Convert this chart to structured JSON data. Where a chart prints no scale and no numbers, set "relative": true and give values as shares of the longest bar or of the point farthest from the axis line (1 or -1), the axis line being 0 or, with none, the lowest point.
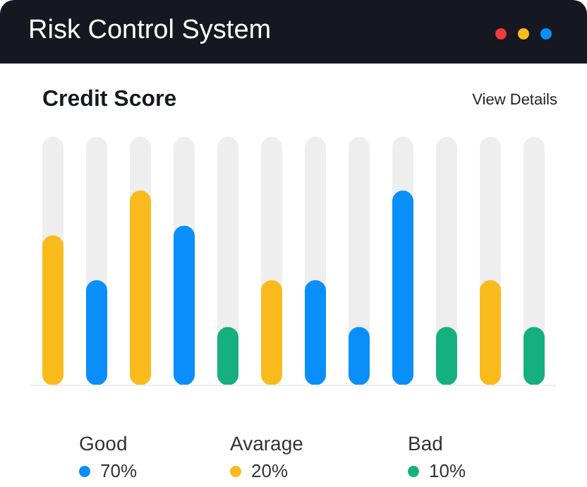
{
  "chart_data": [
    {
      "type": "bar",
      "title": "Risk Control System",
      "subtitle": "Credit Score",
      "relative": true,
      "categories": [
        null,
        null,
        null,
        null,
        null,
        null,
        null,
        null,
        null,
        null,
        null,
        null
      ],
      "values": [
        0.77,
        0.54,
        1,
        0.82,
        0.3,
        0.54,
        0.54,
        0.3,
        1,
        0.3,
        0.54,
        0.3
      ],
      "colors": [
        "#f9bb1c",
        "#0a8ffa",
        "#f9bb1c",
        "#0a8ffa",
        "#16b07e",
        "#f9bb1c",
        "#0a8ffa",
        "#0a8ffa",
        "#0a8ffa",
        "#16b07e",
        "#f9bb1c",
        "#16b07e"
      ],
      "annotations": [
        "View Details"
      ]
    },
    {
      "type": "other",
      "categories": [
        "Good",
        "Avarage",
        "Bad"
      ],
      "values": [
        70,
        20,
        10
      ],
      "colors": [
        "#0a8ffa",
        "#f9bb1c",
        "#16b07e"
      ],
      "value_labels": [
        "70%",
        "20%",
        "10%"
      ]
    }
  ]
}
